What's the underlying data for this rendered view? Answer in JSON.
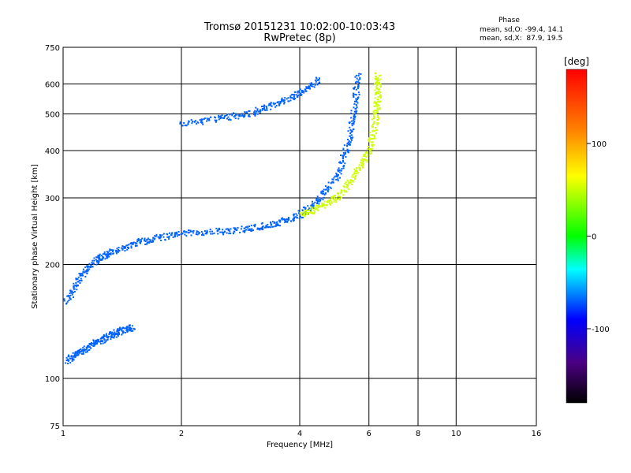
{
  "chart_data": {
    "type": "scatter",
    "title": "Tromsø 20151231 10:02:00-10:03:43",
    "subtitle": "RwPretec (8p)",
    "xlabel": "Frequency [MHz]",
    "ylabel": "Stationary phase Virtual Height [km]",
    "xscale": "log",
    "yscale": "log",
    "xlim": [
      1,
      16
    ],
    "ylim": [
      75,
      750
    ],
    "x_ticks": [
      1,
      2,
      4,
      6,
      8,
      10,
      16
    ],
    "x_tick_labels": [
      "1",
      "2",
      "4",
      "6",
      "8",
      "10",
      "16"
    ],
    "y_ticks": [
      75,
      100,
      200,
      300,
      400,
      500,
      600,
      750
    ],
    "y_tick_labels": [
      "75",
      "100",
      "200",
      "300",
      "400",
      "500",
      "600",
      "750"
    ],
    "grid": true,
    "stats": {
      "heading": "Phase",
      "line_o": "mean, sd,O: -99.4, 14.1",
      "line_x": "mean, sd,X:  87.9, 19.5"
    },
    "colorbar": {
      "unit": "[deg]",
      "range": [
        -180,
        180
      ],
      "ticks": [
        100,
        0,
        -100
      ],
      "tick_labels": [
        "100",
        "0",
        "-100"
      ]
    },
    "traces": [
      {
        "mode": "O",
        "phase_deg": -99.4,
        "segment": "E-region trace",
        "points": [
          [
            1.02,
            112
          ],
          [
            1.1,
            118
          ],
          [
            1.2,
            124
          ],
          [
            1.3,
            130
          ],
          [
            1.4,
            134
          ],
          [
            1.5,
            137
          ]
        ]
      },
      {
        "mode": "O",
        "phase_deg": -99.4,
        "segment": "F trace, low frequency",
        "points": [
          [
            1.02,
            160
          ],
          [
            1.1,
            185
          ],
          [
            1.2,
            205
          ],
          [
            1.3,
            215
          ],
          [
            1.5,
            228
          ],
          [
            1.7,
            235
          ],
          [
            2.0,
            243
          ],
          [
            2.5,
            246
          ],
          [
            3.0,
            250
          ],
          [
            3.5,
            258
          ],
          [
            4.0,
            272
          ],
          [
            4.5,
            300
          ],
          [
            5.0,
            350
          ],
          [
            5.3,
            420
          ],
          [
            5.5,
            520
          ],
          [
            5.6,
            640
          ]
        ]
      },
      {
        "mode": "O",
        "phase_deg": -99.4,
        "segment": "upper F trace",
        "points": [
          [
            2.0,
            470
          ],
          [
            2.5,
            490
          ],
          [
            3.0,
            505
          ],
          [
            3.5,
            535
          ],
          [
            4.0,
            570
          ],
          [
            4.5,
            620
          ]
        ]
      },
      {
        "mode": "X",
        "phase_deg": 87.9,
        "segment": "X trace",
        "points": [
          [
            4.0,
            272
          ],
          [
            4.5,
            285
          ],
          [
            5.0,
            305
          ],
          [
            5.5,
            345
          ],
          [
            6.0,
            400
          ],
          [
            6.2,
            480
          ],
          [
            6.3,
            560
          ],
          [
            6.3,
            640
          ]
        ]
      }
    ]
  }
}
